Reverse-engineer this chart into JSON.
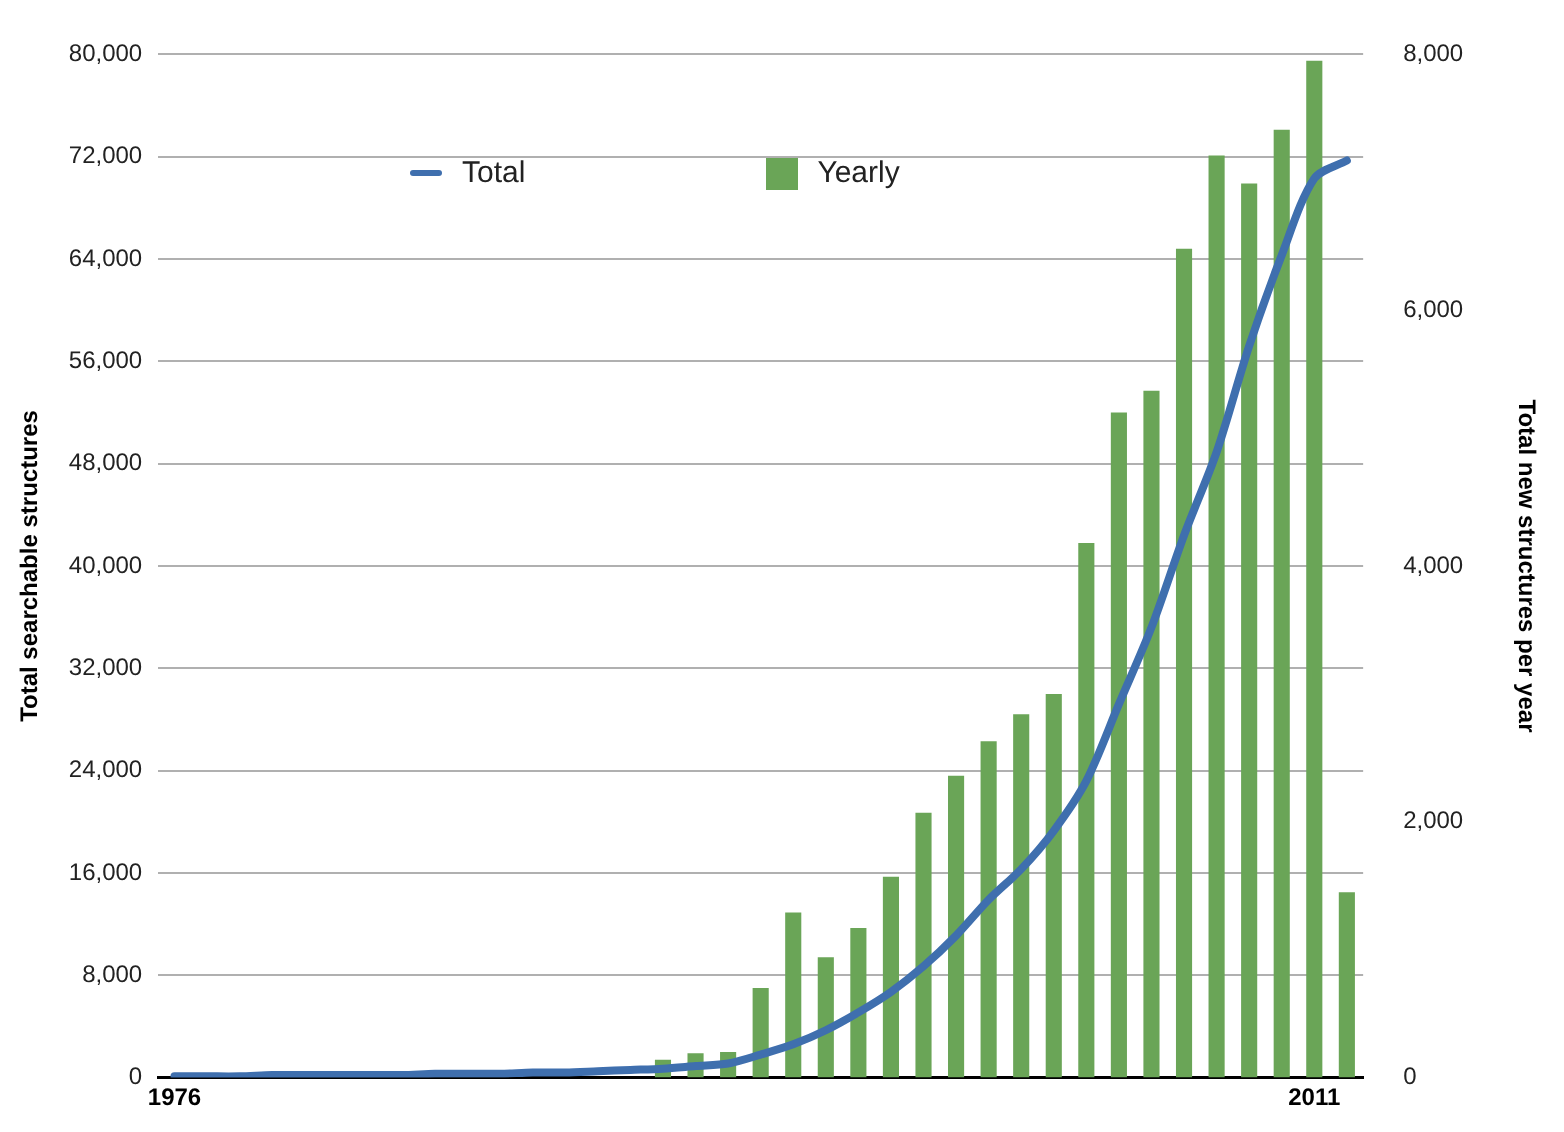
{
  "chart_data": {
    "type": "bar",
    "categories": [
      "1976",
      null,
      null,
      null,
      null,
      null,
      null,
      null,
      null,
      null,
      null,
      null,
      null,
      null,
      null,
      null,
      null,
      null,
      null,
      null,
      null,
      null,
      null,
      null,
      null,
      null,
      null,
      null,
      null,
      null,
      null,
      null,
      null,
      null,
      null,
      "2011",
      null
    ],
    "series": [
      {
        "name": "Total",
        "type": "line",
        "color": "#3f6fae",
        "values": [
          100,
          100,
          100,
          200,
          200,
          200,
          200,
          200,
          300,
          300,
          300,
          400,
          400,
          500,
          600,
          700,
          900,
          1100,
          1800,
          2600,
          3700,
          5100,
          6700,
          8700,
          11100,
          13900,
          16300,
          19300,
          23200,
          29200,
          35200,
          42400,
          48900,
          57200,
          64300,
          70300,
          71700
        ]
      },
      {
        "name": "Yearly",
        "axis": "y2",
        "color": "#6aa557",
        "values": [
          null,
          null,
          null,
          null,
          null,
          null,
          null,
          null,
          null,
          null,
          null,
          null,
          null,
          null,
          null,
          140,
          190,
          200,
          700,
          1290,
          940,
          1170,
          1570,
          2070,
          2360,
          2630,
          2840,
          3000,
          4180,
          5200,
          5370,
          6480,
          7210,
          6990,
          7410,
          7950,
          1450
        ]
      }
    ],
    "ylabel": "Total searchable structures",
    "y2label": "Total new structures per year",
    "ylim": [
      0,
      80000
    ],
    "yticks": [
      0,
      {
        "value": 8000,
        "label": "8,000"
      },
      {
        "value": 16000,
        "label": "16,000"
      },
      {
        "value": 24000,
        "label": "24,000"
      },
      {
        "value": 32000,
        "label": "32,000"
      },
      {
        "value": 40000,
        "label": "40,000"
      },
      {
        "value": 48000,
        "label": "48,000"
      },
      {
        "value": 56000,
        "label": "56,000"
      },
      {
        "value": 64000,
        "label": "64,000"
      },
      {
        "value": 72000,
        "label": "72,000"
      },
      {
        "value": 80000,
        "label": "80,000"
      }
    ],
    "y2lim": [
      0,
      8000
    ],
    "y2ticks": [
      0,
      {
        "value": 2000,
        "label": "2,000"
      },
      {
        "value": 4000,
        "label": "4,000"
      },
      {
        "value": 6000,
        "label": "6,000"
      },
      {
        "value": 8000,
        "label": "8,000"
      }
    ],
    "grid": "y",
    "legend": "top",
    "marker": "none",
    "line_style": "solid"
  }
}
